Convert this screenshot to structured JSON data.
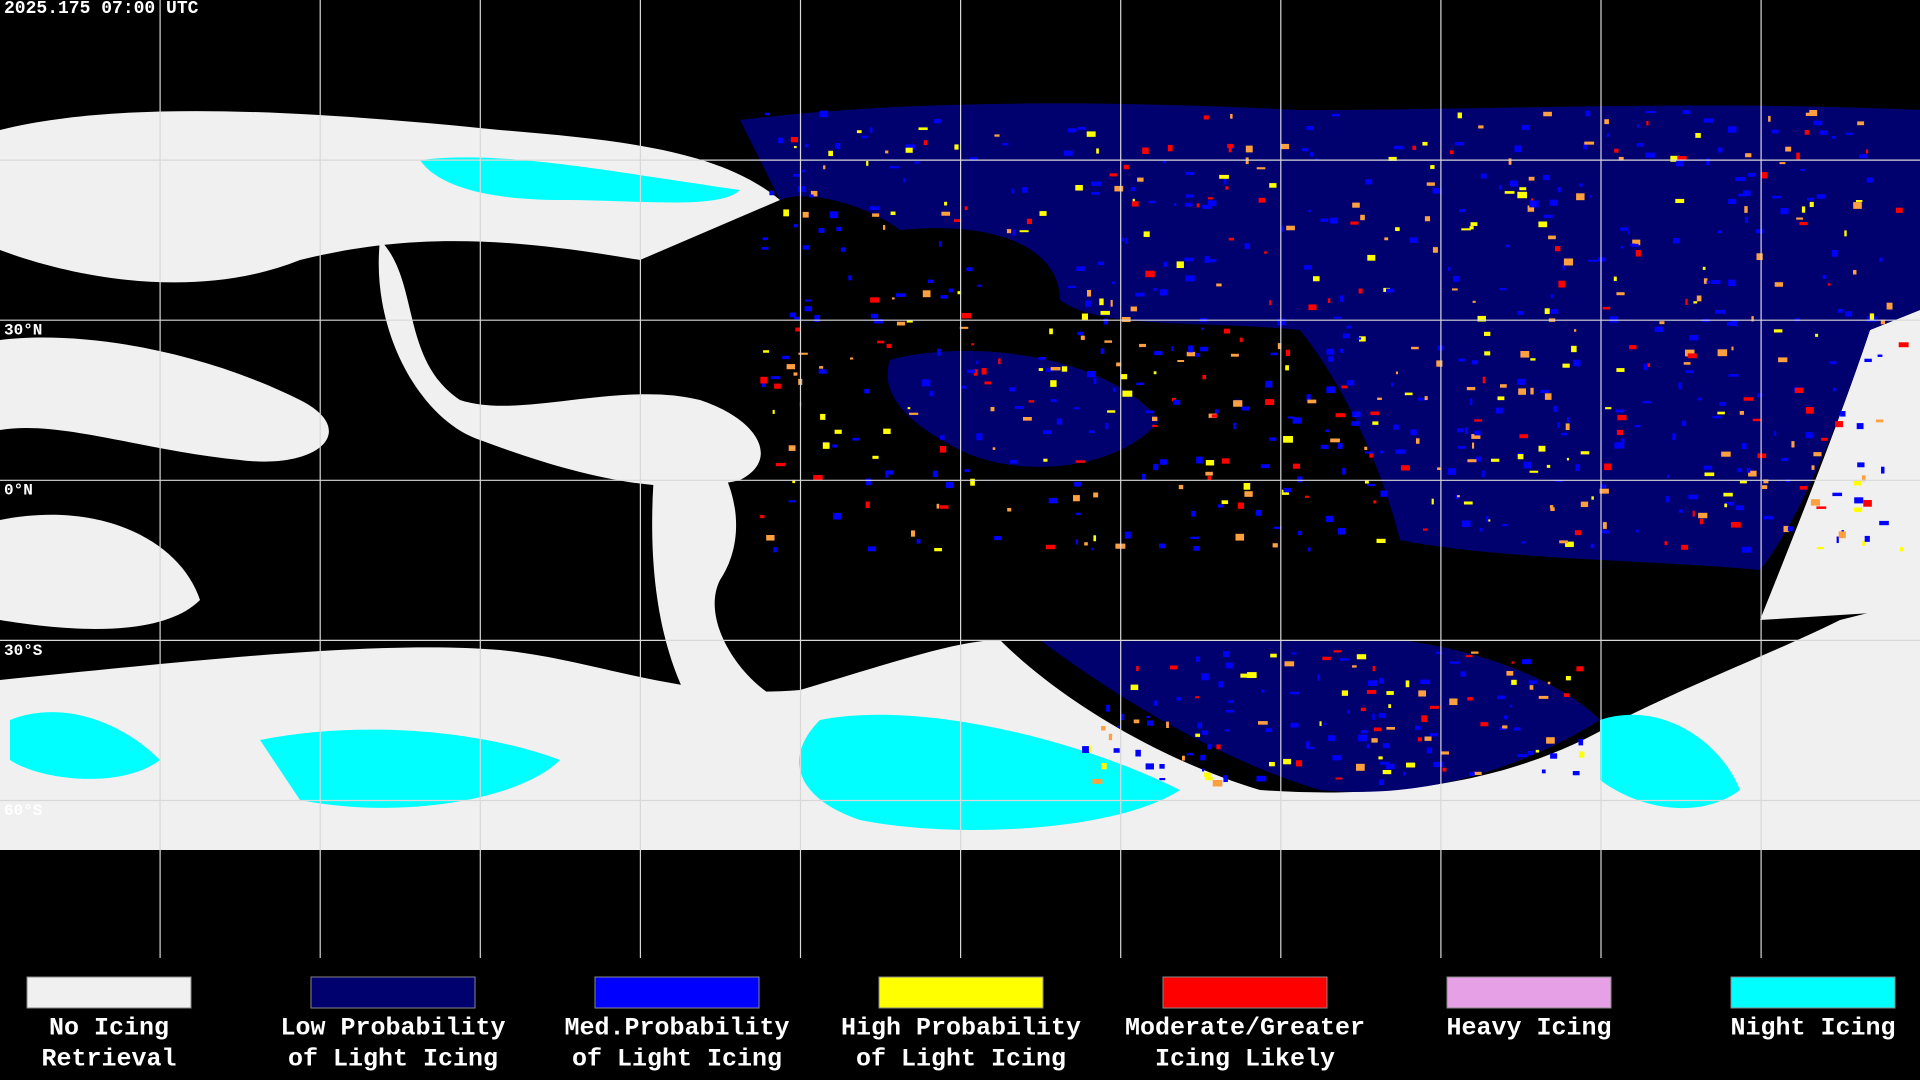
{
  "header": {
    "timestamp": "2025.175 07:00 UTC"
  },
  "latitude_labels": [
    "30°N",
    "0°N",
    "30°S",
    "60°S"
  ],
  "legend": [
    {
      "lines": [
        "No Icing",
        "Retrieval"
      ],
      "color": "#f0f0f0"
    },
    {
      "lines": [
        "Low Probability",
        "of Light Icing"
      ],
      "color": "#00006e"
    },
    {
      "lines": [
        "Med.Probability",
        "of Light Icing"
      ],
      "color": "#0000ff"
    },
    {
      "lines": [
        "High Probability",
        "of Light Icing"
      ],
      "color": "#ffff00"
    },
    {
      "lines": [
        "Moderate/Greater",
        "Icing Likely"
      ],
      "color": "#ff0000"
    },
    {
      "lines": [
        "Heavy Icing"
      ],
      "color": "#e6a0e6"
    },
    {
      "lines": [
        "Night Icing"
      ],
      "color": "#00ffff"
    }
  ]
}
